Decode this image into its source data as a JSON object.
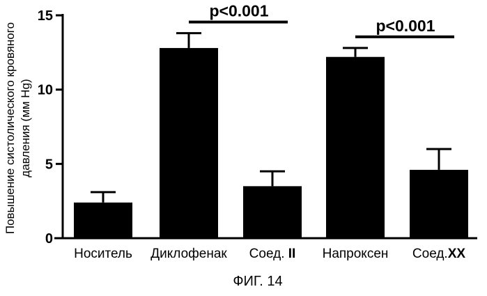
{
  "chart_data": {
    "type": "bar",
    "ylabel_lines": [
      "Повышение систолического кровяного",
      "давления (мм Hg)"
    ],
    "y_ticks": [
      0,
      5,
      10,
      15
    ],
    "ylim": [
      0,
      15
    ],
    "categories": [
      {
        "prefix": "Носитель",
        "bold": ""
      },
      {
        "prefix": "Диклофенак",
        "bold": ""
      },
      {
        "prefix": "Соед. ",
        "bold": "II"
      },
      {
        "prefix": "Напроксен",
        "bold": ""
      },
      {
        "prefix": "Соед.",
        "bold": "XX"
      }
    ],
    "values": [
      2.4,
      12.8,
      3.5,
      12.2,
      4.6
    ],
    "error_upper": [
      3.1,
      13.8,
      4.5,
      12.8,
      6.0
    ],
    "bar_color": "#000000",
    "significance": [
      {
        "label": "p<0.001",
        "from_index": 1,
        "to_index": 2
      },
      {
        "label": "p<0.001",
        "from_index": 3,
        "to_index": 4
      }
    ],
    "grid": false
  },
  "caption": "ФИГ. 14"
}
